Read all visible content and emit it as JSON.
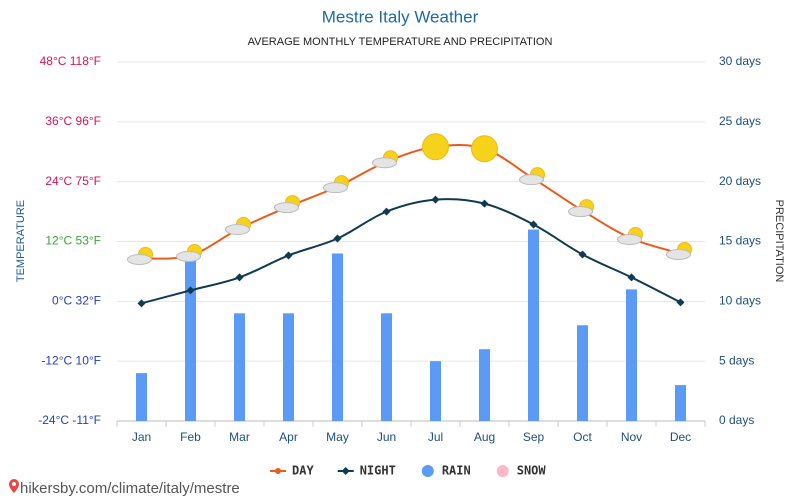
{
  "chart_data": {
    "type": "combo",
    "title": "Mestre Italy Weather",
    "subtitle": "AVERAGE MONTHLY TEMPERATURE AND PRECIPITATION",
    "y_label": "TEMPERATURE",
    "y2_label": "PRECIPITATION",
    "footer": "hikersby.com/climate/italy/mestre",
    "categories": [
      "Jan",
      "Feb",
      "Mar",
      "Apr",
      "May",
      "Jun",
      "Jul",
      "Aug",
      "Sep",
      "Oct",
      "Nov",
      "Dec"
    ],
    "ylim": [
      -24,
      48
    ],
    "yticks": [
      {
        "value": -24,
        "label": "-24°C -11°F"
      },
      {
        "value": -12,
        "label": "-12°C 10°F"
      },
      {
        "value": 0,
        "label": "0°C 32°F"
      },
      {
        "value": 12,
        "label": "12°C 53°F"
      },
      {
        "value": 24,
        "label": "24°C 75°F"
      },
      {
        "value": 36,
        "label": "36°C 96°F"
      },
      {
        "value": 48,
        "label": "48°C 118°F"
      }
    ],
    "ytick_colors": [
      "#1f3fbf",
      "#1f3fbf",
      "#1f3fbf",
      "#3aa53a",
      "#d6135a",
      "#d6135a",
      "#d6135a"
    ],
    "y2lim": [
      0,
      30
    ],
    "y2ticks": [
      {
        "value": 0,
        "label": "0 days"
      },
      {
        "value": 5,
        "label": "5 days"
      },
      {
        "value": 10,
        "label": "10 days"
      },
      {
        "value": 15,
        "label": "15 days"
      },
      {
        "value": 20,
        "label": "20 days"
      },
      {
        "value": 25,
        "label": "25 days"
      },
      {
        "value": 30,
        "label": "30 days"
      }
    ],
    "grid": true,
    "legend": "bottom",
    "series": [
      {
        "name": "DAY",
        "type": "line",
        "color": "#ec5a1c",
        "values": [
          8.6,
          9.2,
          14.6,
          19,
          23,
          28,
          31,
          30.6,
          24.6,
          18.2,
          12.6,
          9.6
        ]
      },
      {
        "name": "NIGHT",
        "type": "line",
        "color": "#0f3b52",
        "marker": "diamond",
        "values": [
          -0.4,
          2.2,
          4.8,
          9.2,
          12.6,
          18,
          20.4,
          19.6,
          15.4,
          9.4,
          4.8,
          -0.2
        ]
      },
      {
        "name": "RAIN",
        "type": "bar",
        "axis": "y2",
        "color": "#5b9bf5",
        "values": [
          4,
          14,
          9,
          9,
          14,
          9,
          5,
          6,
          16,
          8,
          11,
          3
        ]
      },
      {
        "name": "SNOW",
        "type": "bar",
        "axis": "y2",
        "color": "#ffb8c8",
        "values": [
          0,
          0,
          0,
          0,
          0,
          0,
          0,
          0,
          0,
          0,
          0,
          0
        ]
      }
    ]
  }
}
